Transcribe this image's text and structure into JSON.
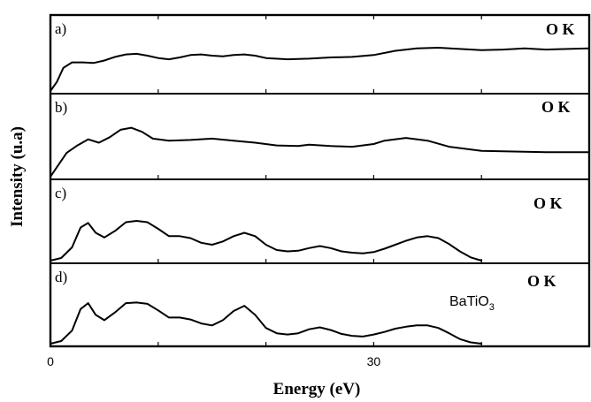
{
  "chart_data": {
    "type": "line",
    "xlabel": "Energy (eV)",
    "ylabel": "Intensity (u.a)",
    "xlim": [
      0,
      50
    ],
    "xticks": [
      "0",
      "30"
    ],
    "grid": false,
    "panels": [
      {
        "label": "a)",
        "edge_label": "O K",
        "annotation": "",
        "series": [
          {
            "x": [
              0,
              0.6,
              1.2,
              2,
              3,
              4,
              5,
              6,
              7,
              8,
              9,
              10,
              11,
              12,
              13,
              14,
              15,
              16,
              17,
              18,
              19,
              20,
              22,
              24,
              26,
              28,
              30,
              32,
              34,
              36,
              38,
              40,
              42,
              44,
              46,
              48,
              50
            ],
            "y": [
              0.0,
              0.15,
              0.38,
              0.47,
              0.47,
              0.46,
              0.5,
              0.56,
              0.6,
              0.61,
              0.58,
              0.54,
              0.52,
              0.55,
              0.59,
              0.6,
              0.58,
              0.57,
              0.59,
              0.6,
              0.58,
              0.54,
              0.52,
              0.53,
              0.55,
              0.56,
              0.59,
              0.66,
              0.7,
              0.71,
              0.69,
              0.67,
              0.68,
              0.7,
              0.68,
              0.69,
              0.7
            ]
          }
        ]
      },
      {
        "label": "b)",
        "edge_label": "O K",
        "annotation": "",
        "series": [
          {
            "x": [
              0,
              0.6,
              1.5,
              2.5,
              3.5,
              4.5,
              5.5,
              6.5,
              7.5,
              8.5,
              9.5,
              11,
              13,
              15,
              17,
              19,
              21,
              23,
              24,
              26,
              28,
              30,
              31,
              33,
              35,
              37,
              40,
              43,
              46,
              50
            ],
            "y": [
              0.0,
              0.14,
              0.35,
              0.46,
              0.55,
              0.5,
              0.58,
              0.69,
              0.72,
              0.66,
              0.56,
              0.53,
              0.54,
              0.56,
              0.53,
              0.5,
              0.46,
              0.45,
              0.47,
              0.45,
              0.44,
              0.48,
              0.53,
              0.57,
              0.53,
              0.44,
              0.38,
              0.37,
              0.36,
              0.36
            ]
          }
        ]
      },
      {
        "label": "c)",
        "edge_label": "O K",
        "annotation": "",
        "series": [
          {
            "x": [
              0,
              1,
              2,
              2.8,
              3.5,
              4.2,
              5,
              6,
              7,
              8,
              9,
              10,
              11,
              12,
              13,
              14,
              15,
              16,
              17,
              18,
              19,
              20,
              21,
              22,
              23,
              24,
              25,
              26,
              27,
              28,
              29,
              30,
              31,
              32,
              33,
              34,
              35,
              36,
              37,
              38,
              39,
              40
            ],
            "y": [
              0.0,
              0.04,
              0.2,
              0.5,
              0.57,
              0.42,
              0.35,
              0.45,
              0.58,
              0.6,
              0.58,
              0.48,
              0.37,
              0.37,
              0.34,
              0.27,
              0.24,
              0.29,
              0.37,
              0.42,
              0.37,
              0.24,
              0.16,
              0.14,
              0.15,
              0.19,
              0.22,
              0.19,
              0.14,
              0.12,
              0.11,
              0.13,
              0.18,
              0.24,
              0.3,
              0.35,
              0.37,
              0.34,
              0.25,
              0.14,
              0.05,
              0.0
            ]
          }
        ]
      },
      {
        "label": "d)",
        "edge_label": "O K",
        "annotation": "BaTiO3",
        "series": [
          {
            "x": [
              0,
              1,
              2,
              2.8,
              3.5,
              4.2,
              5,
              6,
              7,
              8,
              9,
              10,
              11,
              12,
              13,
              14,
              15,
              16,
              17,
              18,
              19,
              20,
              21,
              22,
              23,
              24,
              25,
              26,
              27,
              28,
              29,
              30,
              31,
              32,
              33,
              34,
              35,
              36,
              37,
              38,
              39,
              40
            ],
            "y": [
              0.0,
              0.04,
              0.2,
              0.53,
              0.62,
              0.44,
              0.36,
              0.48,
              0.62,
              0.63,
              0.61,
              0.51,
              0.4,
              0.4,
              0.37,
              0.31,
              0.28,
              0.36,
              0.5,
              0.58,
              0.44,
              0.24,
              0.16,
              0.14,
              0.16,
              0.22,
              0.25,
              0.21,
              0.15,
              0.12,
              0.11,
              0.14,
              0.18,
              0.23,
              0.26,
              0.28,
              0.28,
              0.24,
              0.16,
              0.07,
              0.02,
              0.0
            ]
          }
        ]
      }
    ]
  }
}
